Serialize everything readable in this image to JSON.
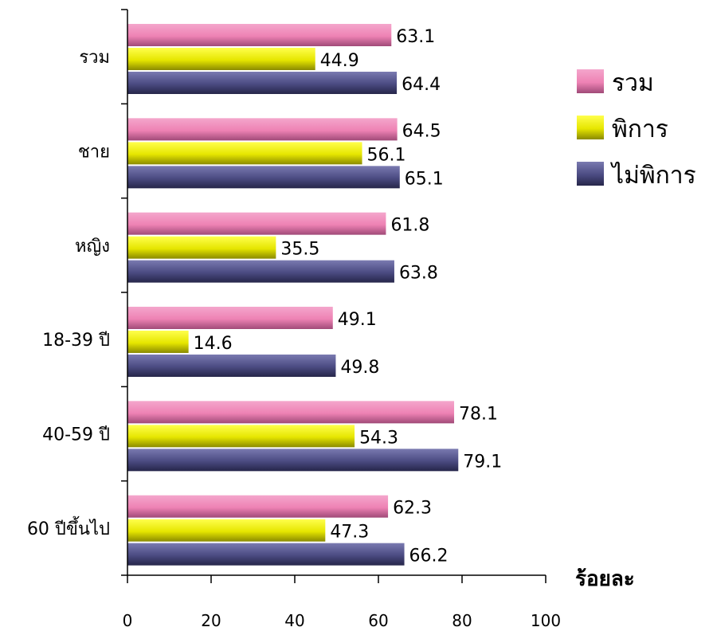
{
  "chart_data": {
    "type": "bar",
    "orientation": "horizontal",
    "categories": [
      "รวม",
      "ชาย",
      "หญิง",
      "18-39 ปี",
      "40-59 ปี",
      "60 ปีขึ้นไป"
    ],
    "series": [
      {
        "name": "รวม",
        "color": "#ee82b4",
        "values": [
          63.1,
          64.5,
          61.8,
          49.1,
          78.1,
          62.3
        ]
      },
      {
        "name": "พิการ",
        "color": "#e6e600",
        "values": [
          44.9,
          56.1,
          35.5,
          14.6,
          54.3,
          47.3
        ]
      },
      {
        "name": "ไม่พิการ",
        "color": "#4b4b82",
        "values": [
          64.4,
          65.1,
          63.8,
          49.8,
          79.1,
          66.2
        ]
      }
    ],
    "xlim": [
      0,
      100
    ],
    "xticks": [
      "0",
      "20",
      "40",
      "60",
      "80",
      "100"
    ],
    "xlabel": "ร้อยละ",
    "legend_position": "right",
    "grid": false
  }
}
